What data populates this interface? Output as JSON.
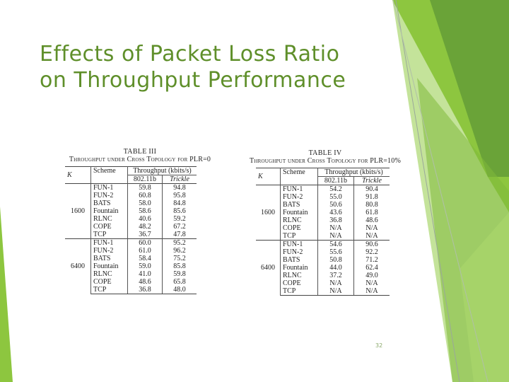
{
  "slide": {
    "title_line1": "Effects of Packet Loss Ratio",
    "title_line2": "on Throughput Performance",
    "page_number": "32"
  },
  "colors": {
    "title": "#5f8f2a",
    "accent_green": "#8dc63f",
    "dark_green": "#6aa338"
  },
  "table3": {
    "label": "TABLE III",
    "caption": "Throughput under Cross Topology for PLR=0",
    "col_k": "K",
    "col_scheme": "Scheme",
    "col_throughput": "Throughput (kbits/s)",
    "sub_a": "802.11b",
    "sub_b": "Trickle",
    "groups": [
      {
        "k": "1600",
        "rows": [
          {
            "scheme": "FUN-1",
            "a": "59.8",
            "b": "94.8"
          },
          {
            "scheme": "FUN-2",
            "a": "60.8",
            "b": "95.8"
          },
          {
            "scheme": "BATS",
            "a": "58.0",
            "b": "84.8"
          },
          {
            "scheme": "Fountain",
            "a": "58.6",
            "b": "85.6"
          },
          {
            "scheme": "RLNC",
            "a": "40.6",
            "b": "59.2"
          },
          {
            "scheme": "COPE",
            "a": "48.2",
            "b": "67.2"
          },
          {
            "scheme": "TCP",
            "a": "36.7",
            "b": "47.8"
          }
        ]
      },
      {
        "k": "6400",
        "rows": [
          {
            "scheme": "FUN-1",
            "a": "60.0",
            "b": "95.2"
          },
          {
            "scheme": "FUN-2",
            "a": "61.0",
            "b": "96.2"
          },
          {
            "scheme": "BATS",
            "a": "58.4",
            "b": "75.2"
          },
          {
            "scheme": "Fountain",
            "a": "59.0",
            "b": "85.8"
          },
          {
            "scheme": "RLNC",
            "a": "41.0",
            "b": "59.8"
          },
          {
            "scheme": "COPE",
            "a": "48.6",
            "b": "65.8"
          },
          {
            "scheme": "TCP",
            "a": "36.8",
            "b": "48.0"
          }
        ]
      }
    ]
  },
  "table4": {
    "label": "TABLE IV",
    "caption": "Throughput under Cross Topology for PLR=10%",
    "col_k": "K",
    "col_scheme": "Scheme",
    "col_throughput": "Throughput (kbits/s)",
    "sub_a": "802.11b",
    "sub_b": "Trickle",
    "groups": [
      {
        "k": "1600",
        "rows": [
          {
            "scheme": "FUN-1",
            "a": "54.2",
            "b": "90.4"
          },
          {
            "scheme": "FUN-2",
            "a": "55.0",
            "b": "91.8"
          },
          {
            "scheme": "BATS",
            "a": "50.6",
            "b": "80.8"
          },
          {
            "scheme": "Fountain",
            "a": "43.6",
            "b": "61.8"
          },
          {
            "scheme": "RLNC",
            "a": "36.8",
            "b": "48.6"
          },
          {
            "scheme": "COPE",
            "a": "N/A",
            "b": "N/A"
          },
          {
            "scheme": "TCP",
            "a": "N/A",
            "b": "N/A"
          }
        ]
      },
      {
        "k": "6400",
        "rows": [
          {
            "scheme": "FUN-1",
            "a": "54.6",
            "b": "90.6"
          },
          {
            "scheme": "FUN-2",
            "a": "55.6",
            "b": "92.2"
          },
          {
            "scheme": "BATS",
            "a": "50.8",
            "b": "71.2"
          },
          {
            "scheme": "Fountain",
            "a": "44.0",
            "b": "62.4"
          },
          {
            "scheme": "RLNC",
            "a": "37.2",
            "b": "49.0"
          },
          {
            "scheme": "COPE",
            "a": "N/A",
            "b": "N/A"
          },
          {
            "scheme": "TCP",
            "a": "N/A",
            "b": "N/A"
          }
        ]
      }
    ]
  }
}
